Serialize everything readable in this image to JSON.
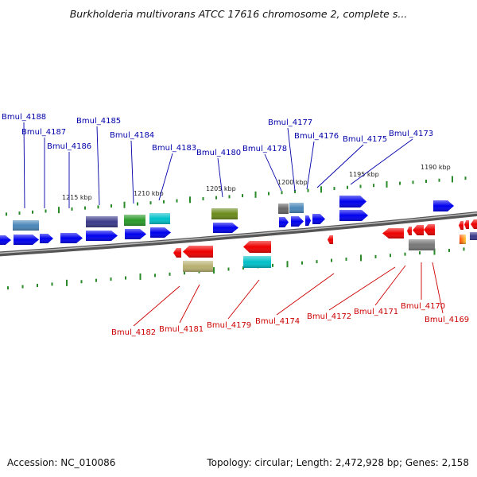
{
  "title": "Burkholderia multivorans ATCC 17616 chromosome 2, complete s...",
  "footer": {
    "accession": "Accession: NC_010086",
    "summary": "Topology: circular; Length: 2,472,928 bp; Genes: 2,158"
  },
  "colors": {
    "top_label": "#0000aa",
    "bottom_label": "#cc0000",
    "tick": "#2a8a2a",
    "backbone": "#777777"
  },
  "scale_labels": [
    "1215 kbp",
    "1210 kbp",
    "1205 kbp",
    "1200 kbp",
    "1195 kbp",
    "1190 kbp"
  ],
  "top_genes": [
    "Bmul_4188",
    "Bmul_4187",
    "Bmul_4186",
    "Bmul_4185",
    "Bmul_4184",
    "Bmul_4183",
    "Bmul_4180",
    "Bmul_4178",
    "Bmul_4177",
    "Bmul_4176",
    "Bmul_4175",
    "Bmul_4173"
  ],
  "bottom_genes": [
    "Bmul_4182",
    "Bmul_4181",
    "Bmul_4179",
    "Bmul_4174",
    "Bmul_4172",
    "Bmul_4171",
    "Bmul_4170",
    "Bmul_4169"
  ]
}
